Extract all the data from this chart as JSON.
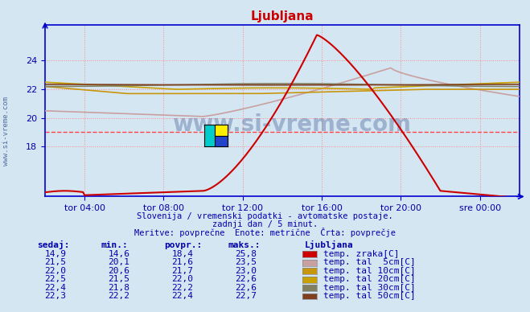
{
  "title": "Ljubljana",
  "title_color": "#cc0000",
  "bg_color": "#d5e6f3",
  "plot_bg_color": "#d5e6f3",
  "axis_color": "#0000cc",
  "text_color": "#0000aa",
  "yticks": [
    18,
    20,
    22,
    24
  ],
  "ylim": [
    14.5,
    26.5
  ],
  "xlim": [
    0,
    288
  ],
  "xtick_positions": [
    24,
    72,
    120,
    168,
    216,
    264
  ],
  "xtick_labels": [
    "tor 04:00",
    "tor 08:00",
    "tor 12:00",
    "tor 16:00",
    "tor 20:00",
    "sre 00:00"
  ],
  "watermark_line1": "Slovenija / vremenski podatki - avtomatske postaje.",
  "watermark_line2": "zadnji dan / 5 minut.",
  "watermark_line3": "Meritve: povprečne  Enote: metrične  Črta: povprečje",
  "legend_title": "Ljubljana",
  "legend_items": [
    {
      "label": "temp. zraka[C]",
      "color": "#cc0000"
    },
    {
      "label": "temp. tal  5cm[C]",
      "color": "#c8a0a0"
    },
    {
      "label": "temp. tal 10cm[C]",
      "color": "#c8960a"
    },
    {
      "label": "temp. tal 20cm[C]",
      "color": "#c8a000"
    },
    {
      "label": "temp. tal 30cm[C]",
      "color": "#808060"
    },
    {
      "label": "temp. tal 50cm[C]",
      "color": "#804020"
    }
  ],
  "table_headers": [
    "sedaj:",
    "min.:",
    "povpr.:",
    "maks.:"
  ],
  "table_data": [
    [
      "14,9",
      "14,6",
      "18,4",
      "25,8"
    ],
    [
      "21,5",
      "20,1",
      "21,6",
      "23,5"
    ],
    [
      "22,0",
      "20,6",
      "21,7",
      "23,0"
    ],
    [
      "22,5",
      "21,5",
      "22,0",
      "22,6"
    ],
    [
      "22,4",
      "21,8",
      "22,2",
      "22,6"
    ],
    [
      "22,3",
      "22,2",
      "22,4",
      "22,7"
    ]
  ],
  "n_points": 289
}
